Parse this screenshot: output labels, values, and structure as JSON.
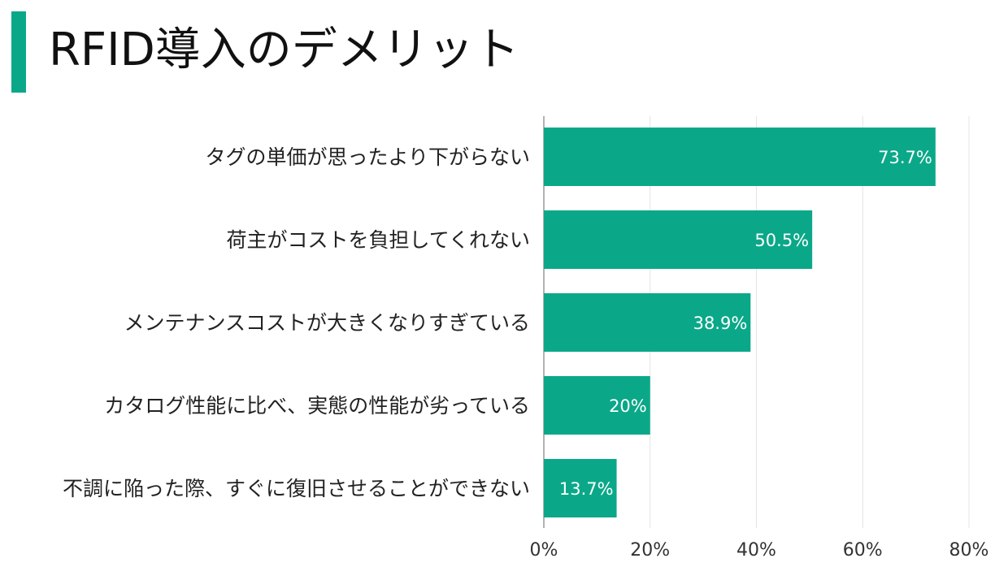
{
  "colors": {
    "accent": "#0aa888",
    "bar": "#0aa888",
    "grid": "#e4e4e4",
    "axis": "#999999"
  },
  "chart_data": {
    "type": "bar",
    "orientation": "horizontal",
    "title": "RFID導入のデメリット",
    "categories": [
      "タグの単価が思ったより下がらない",
      "荷主がコストを負担してくれない",
      "メンテナンスコストが大きくなりすぎている",
      "カタログ性能に比べ、実態の性能が劣っている",
      "不調に陥った際、すぐに復旧させることができない"
    ],
    "values": [
      73.7,
      50.5,
      38.9,
      20,
      13.7
    ],
    "value_labels": [
      "73.7%",
      "50.5%",
      "38.9%",
      "20%",
      "13.7%"
    ],
    "xlim": [
      0,
      80
    ],
    "xticks": [
      0,
      20,
      40,
      60,
      80
    ],
    "xtick_labels": [
      "0%",
      "20%",
      "40%",
      "60%",
      "80%"
    ],
    "grid": true,
    "legend": "none"
  }
}
